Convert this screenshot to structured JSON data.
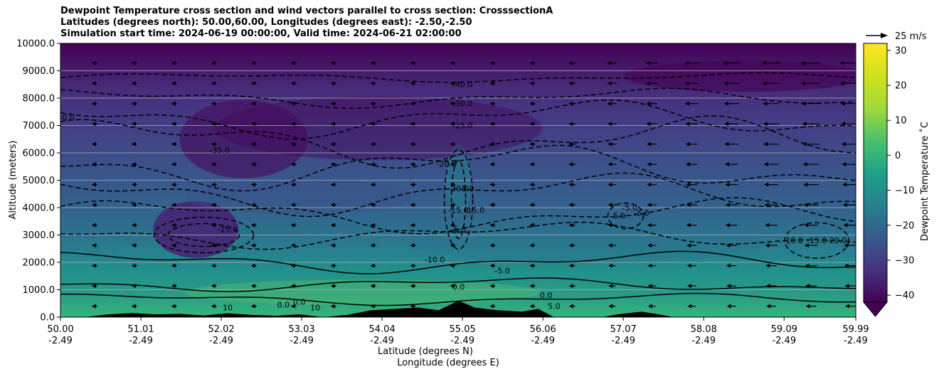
{
  "chart_data": {
    "type": "heatmap",
    "title_lines": [
      "Dewpoint Temperature cross section and wind vectors parallel to cross section: CrosssectionA",
      "Latitudes (degrees north): 50.00,60.00, Longitudes (degrees east): -2.50,-2.50",
      "Simulation start time: 2024-06-19 00:00:00, Valid time: 2024-06-21 02:00:00"
    ],
    "xlabel_lines": [
      "Latitude (degrees N)",
      "Longitude (degrees E)"
    ],
    "ylabel": "Altitude (meters)",
    "x_ticks": [
      {
        "lat": "50.00",
        "lon": "-2.49"
      },
      {
        "lat": "51.01",
        "lon": "-2.49"
      },
      {
        "lat": "52.02",
        "lon": "-2.49"
      },
      {
        "lat": "53.03",
        "lon": "-2.49"
      },
      {
        "lat": "54.04",
        "lon": "-2.49"
      },
      {
        "lat": "55.05",
        "lon": "-2.49"
      },
      {
        "lat": "56.06",
        "lon": "-2.49"
      },
      {
        "lat": "57.07",
        "lon": "-2.49"
      },
      {
        "lat": "58.08",
        "lon": "-2.49"
      },
      {
        "lat": "59.09",
        "lon": "-2.49"
      },
      {
        "lat": "59.99",
        "lon": "-2.49"
      }
    ],
    "xlim": [
      50.0,
      59.99
    ],
    "y_ticks": [
      "0.0",
      "1000.0",
      "2000.0",
      "3000.0",
      "4000.0",
      "5000.0",
      "6000.0",
      "7000.0",
      "8000.0",
      "9000.0",
      "10000.0"
    ],
    "ylim": [
      0,
      10000
    ],
    "grid": "horizontal",
    "colorbar": {
      "label": "Dewpoint Temperature $^\\circ$C",
      "label_display": "Dewpoint Temperature ˚C",
      "ticks": [
        "30",
        "20",
        "10",
        "0",
        "−10",
        "−20",
        "−30",
        "−40"
      ],
      "range": [
        -42,
        32
      ],
      "extend": "min",
      "colormap": "viridis"
    },
    "quiver_key": {
      "label": "25 m/s",
      "speed": 25
    },
    "contour_levels": [
      -40,
      -35,
      -30,
      -25,
      -20,
      -15,
      -10,
      -5,
      0,
      5,
      10
    ],
    "contour_labels": [
      {
        "text": "-40.0",
        "lat": 55.05,
        "alt": 8400
      },
      {
        "text": "-30.0",
        "lat": 55.05,
        "alt": 7700
      },
      {
        "text": "-25.0",
        "lat": 55.05,
        "alt": 6900
      },
      {
        "text": "-35.0",
        "lat": 52.0,
        "alt": 6000
      },
      {
        "text": "-40.0",
        "lat": 50.05,
        "alt": 7200
      },
      {
        "text": "-20.0",
        "lat": 54.85,
        "alt": 5500
      },
      {
        "text": "-20.0",
        "lat": 55.0,
        "alt": 4600
      },
      {
        "text": "-5.0",
        "lat": 55.1,
        "alt": 4600
      },
      {
        "text": "-15.0",
        "lat": 55.0,
        "alt": 3800
      },
      {
        "text": "-15.0",
        "lat": 55.2,
        "alt": 3800
      },
      {
        "text": "-25.0",
        "lat": 52.1,
        "alt": 3100
      },
      {
        "text": "-5.0",
        "lat": 55.0,
        "alt": 3100
      },
      {
        "text": "-10.0",
        "lat": 54.7,
        "alt": 2000
      },
      {
        "text": "0.0",
        "lat": 55.0,
        "alt": 1000
      },
      {
        "text": "-5.0",
        "lat": 55.55,
        "alt": 1600
      },
      {
        "text": "-5.0",
        "lat": 57.0,
        "alt": 3600
      },
      {
        "text": "-5.0",
        "lat": 57.15,
        "alt": 3900
      },
      {
        "text": "-5.0",
        "lat": 57.3,
        "alt": 3700
      },
      {
        "text": "0.0",
        "lat": 56.1,
        "alt": 700
      },
      {
        "text": "5.0",
        "lat": 56.2,
        "alt": 300
      },
      {
        "text": "-10.0",
        "lat": 59.2,
        "alt": 2700
      },
      {
        "text": "-15.0",
        "lat": 59.5,
        "alt": 2700
      },
      {
        "text": "-20.0",
        "lat": 59.75,
        "alt": 2700
      },
      {
        "text": "10",
        "lat": 52.1,
        "alt": 250
      },
      {
        "text": "10",
        "lat": 53.2,
        "alt": 250
      },
      {
        "text": "0.0",
        "lat": 52.8,
        "alt": 350
      },
      {
        "text": "0.0",
        "lat": 53.0,
        "alt": 450
      }
    ],
    "terrain": [
      {
        "lat": 50.0,
        "alt": 0
      },
      {
        "lat": 50.3,
        "alt": 0
      },
      {
        "lat": 50.6,
        "alt": 100
      },
      {
        "lat": 50.9,
        "alt": 150
      },
      {
        "lat": 51.2,
        "alt": 100
      },
      {
        "lat": 51.5,
        "alt": 120
      },
      {
        "lat": 51.8,
        "alt": 60
      },
      {
        "lat": 52.1,
        "alt": 140
      },
      {
        "lat": 52.4,
        "alt": 80
      },
      {
        "lat": 52.7,
        "alt": 50
      },
      {
        "lat": 53.0,
        "alt": 100
      },
      {
        "lat": 53.3,
        "alt": 0
      },
      {
        "lat": 53.6,
        "alt": 80
      },
      {
        "lat": 53.9,
        "alt": 250
      },
      {
        "lat": 54.2,
        "alt": 300
      },
      {
        "lat": 54.5,
        "alt": 350
      },
      {
        "lat": 54.75,
        "alt": 250
      },
      {
        "lat": 55.0,
        "alt": 600
      },
      {
        "lat": 55.2,
        "alt": 350
      },
      {
        "lat": 55.5,
        "alt": 250
      },
      {
        "lat": 55.8,
        "alt": 200
      },
      {
        "lat": 56.0,
        "alt": 300
      },
      {
        "lat": 56.2,
        "alt": 0
      },
      {
        "lat": 56.8,
        "alt": 0
      },
      {
        "lat": 57.0,
        "alt": 100
      },
      {
        "lat": 57.3,
        "alt": 200
      },
      {
        "lat": 57.6,
        "alt": 60
      },
      {
        "lat": 57.7,
        "alt": 0
      },
      {
        "lat": 59.99,
        "alt": 0
      }
    ]
  }
}
